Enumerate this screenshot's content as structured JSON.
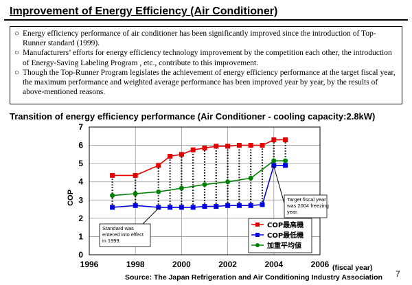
{
  "header": {
    "title": "Improvement of Energy Efficiency (Air Conditioner)"
  },
  "intro": {
    "bullet_mark": "○",
    "bullets": [
      "Energy efficiency performance of air conditioner has been significantly improved since the introduction of Top-Runner standard (1999).",
      "Manufacturers’ efforts for energy efficiency technology improvement by the competition each other, the introduction of Energy-Saving Labeling Program , etc., contribute to this improvement.",
      "Though the Top-Runner Program legislates the achievement of energy efficiency performance at the target fiscal year, the maximum performance and weighted average performance has been improved year by year, by the results of above-mentioned reasons."
    ]
  },
  "footer": {
    "source": "Source: The Japan Refrigeration and Air Conditioning Industry Association",
    "page_number": "7"
  },
  "chart_data": {
    "type": "line",
    "title": "Transition of energy efficiency performance (Air Conditioner -  cooling capacity:2.8kW)",
    "xlabel": "(fiscal year)",
    "ylabel": "COP",
    "xlim": [
      1996,
      2006
    ],
    "ylim": [
      0,
      7
    ],
    "x_ticks": [
      "1996",
      "1998",
      "2000",
      "2002",
      "2004",
      "2006"
    ],
    "y_ticks": [
      "0",
      "1",
      "2",
      "3",
      "4",
      "5",
      "6",
      "7"
    ],
    "grid": true,
    "legend_position": "bottom-right",
    "series": [
      {
        "name": "COP最高機",
        "color": "#e00000",
        "marker": "square",
        "x": [
          1997,
          1998,
          1999,
          1999.5,
          2000,
          2000.5,
          2001,
          2001.5,
          2002,
          2002.5,
          2003,
          2003.5,
          2004,
          2004.5
        ],
        "y": [
          4.35,
          4.35,
          4.9,
          5.4,
          5.5,
          5.75,
          5.85,
          5.95,
          5.95,
          6.0,
          6.0,
          6.0,
          6.3,
          6.3
        ]
      },
      {
        "name": "COP最低機",
        "color": "#0000e0",
        "marker": "square",
        "x": [
          1997,
          1998,
          1999,
          1999.5,
          2000,
          2000.5,
          2001,
          2001.5,
          2002,
          2002.5,
          2003,
          2003.5,
          2004,
          2004.5
        ],
        "y": [
          2.6,
          2.7,
          2.6,
          2.6,
          2.6,
          2.6,
          2.65,
          2.65,
          2.7,
          2.7,
          2.7,
          2.75,
          4.9,
          4.9
        ]
      },
      {
        "name": "加重平均値",
        "color": "#008000",
        "marker": "circle",
        "x": [
          1997,
          1998,
          1999,
          2000,
          2001,
          2002,
          2003,
          2004,
          2004.5
        ],
        "y": [
          3.25,
          3.35,
          3.45,
          3.65,
          3.85,
          4.0,
          4.2,
          5.15,
          5.15
        ]
      }
    ],
    "annotations": [
      {
        "text": "Standard was entered into effect in 1999.",
        "x": 1999,
        "y": 2.5
      },
      {
        "text": "Target fiscal year was 2004 freezing year.",
        "x": 2004,
        "y": 4.8
      }
    ]
  }
}
